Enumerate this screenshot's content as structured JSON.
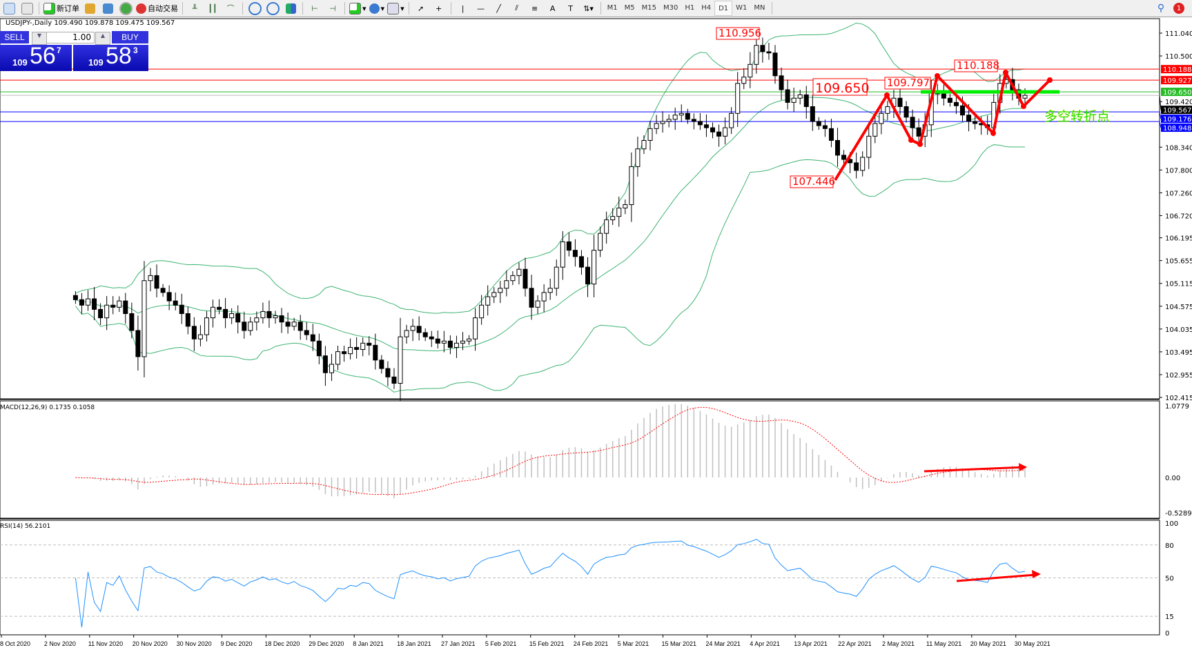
{
  "toolbar": {
    "new_order": "新订单",
    "auto_trading": "自动交易",
    "timeframes": [
      "M1",
      "M5",
      "M15",
      "M30",
      "H1",
      "H4",
      "D1",
      "W1",
      "MN"
    ],
    "active_timeframe": "D1",
    "notification_count": "1"
  },
  "chart_title": "USDJPY-,Daily  109.490 109.878 109.475 109.567",
  "one_click": {
    "sell_label": "SELL",
    "buy_label": "BUY",
    "lot": "1.00",
    "sell_big": "109",
    "sell_digits": "56",
    "sell_frac": "7",
    "buy_big": "109",
    "buy_digits": "58",
    "buy_frac": "3"
  },
  "macd_label": "MACD(12,26,9) 0.1735 0.1058",
  "rsi_label": "RSI(14) 56.2101",
  "annotation_text": "多空转折点",
  "price_labels": [
    "110.956",
    "109.650",
    "109.797",
    "110.188",
    "107.446"
  ],
  "colors": {
    "bull_body": "#ffffff",
    "bear_body": "#000000",
    "bands": "#3cb371",
    "macd_hist": "#c0c0c0",
    "macd_signal": "#ff0000",
    "rsi": "#1e90ff",
    "drawings": "#ff0000",
    "pivot": "#00ee00"
  },
  "chart_data": {
    "type": "candlestick",
    "symbol": "USDJPY-",
    "timeframe": "Daily",
    "price_axis": {
      "ylim": [
        102.415,
        111.04
      ],
      "ticks": [
        "111.040",
        "110.500",
        "109.420",
        "108.340",
        "107.800",
        "107.260",
        "106.720",
        "106.195",
        "105.655",
        "105.115",
        "104.575",
        "104.035",
        "103.495",
        "102.955",
        "102.415"
      ]
    },
    "x_ticks": [
      "8 Oct 2020",
      "2 Nov 2020",
      "11 Nov 2020",
      "20 Nov 2020",
      "30 Nov 2020",
      "9 Dec 2020",
      "18 Dec 2020",
      "29 Dec 2020",
      "8 Jan 2021",
      "18 Jan 2021",
      "27 Jan 2021",
      "5 Feb 2021",
      "15 Feb 2021",
      "24 Feb 2021",
      "5 Mar 2021",
      "15 Mar 2021",
      "24 Mar 2021",
      "4 Apr 2021",
      "13 Apr 2021",
      "22 Apr 2021",
      "2 May 2021",
      "11 May 2021",
      "20 May 2021",
      "30 May 2021"
    ],
    "closes": [
      104.73,
      104.6,
      104.75,
      104.5,
      104.3,
      104.6,
      104.55,
      104.7,
      104.4,
      104.0,
      103.38,
      105.18,
      105.3,
      105.0,
      104.9,
      104.7,
      104.6,
      104.4,
      104.1,
      103.8,
      103.9,
      104.3,
      104.55,
      104.5,
      104.3,
      104.4,
      104.2,
      104.0,
      104.2,
      104.3,
      104.45,
      104.3,
      104.35,
      104.2,
      104.1,
      104.2,
      104.0,
      103.9,
      103.75,
      103.4,
      103.0,
      103.2,
      103.5,
      103.45,
      103.6,
      103.55,
      103.7,
      103.65,
      103.3,
      103.1,
      102.9,
      102.75,
      103.85,
      104.0,
      104.1,
      103.95,
      103.85,
      103.8,
      103.7,
      103.75,
      103.6,
      103.7,
      103.75,
      103.8,
      104.3,
      104.6,
      104.8,
      104.9,
      105.0,
      105.18,
      105.3,
      105.45,
      105.0,
      104.55,
      104.7,
      104.9,
      105.0,
      105.5,
      106.1,
      105.9,
      105.75,
      105.5,
      105.1,
      105.9,
      106.3,
      106.62,
      106.7,
      106.9,
      106.98,
      107.88,
      108.3,
      108.5,
      108.78,
      108.9,
      108.95,
      109.0,
      109.1,
      109.14,
      109.0,
      108.95,
      108.87,
      108.8,
      108.7,
      108.6,
      108.8,
      109.14,
      109.85,
      110.0,
      110.3,
      110.75,
      110.6,
      110.57,
      110.03,
      109.7,
      109.4,
      109.5,
      109.58,
      109.3,
      108.95,
      108.85,
      108.78,
      108.5,
      108.15,
      108.05,
      107.97,
      107.79,
      108.1,
      108.6,
      108.9,
      109.14,
      109.3,
      109.5,
      109.3,
      109.05,
      108.8,
      108.6,
      108.87,
      109.67,
      109.6,
      109.5,
      109.4,
      109.32,
      109.1,
      108.95,
      108.9,
      108.87,
      108.8,
      109.4,
      109.85,
      109.94,
      109.7,
      109.5,
      109.567
    ],
    "horizontal_lines": [
      {
        "price": "110.188",
        "color": "#ff0000"
      },
      {
        "price": "109.927",
        "color": "#ff0000"
      },
      {
        "price": "109.650",
        "color": "#22bb22"
      },
      {
        "price": "109.567",
        "color": "#000000"
      },
      {
        "price": "109.176",
        "color": "#0000ff"
      },
      {
        "price": "108.948",
        "color": "#0000ff"
      }
    ],
    "indicators": [
      {
        "name": "Bollinger Bands",
        "period": 20
      },
      {
        "name": "MACD",
        "params": "12,26,9",
        "ylim": [
          -0.5289,
          1.0779
        ],
        "ticks": [
          "1.0779",
          "0.00",
          "-0.5289"
        ]
      },
      {
        "name": "RSI",
        "period": 14,
        "ylim": [
          0,
          100
        ],
        "ticks": [
          "100",
          "80",
          "50",
          "15",
          "0"
        ],
        "levels": [
          80,
          50,
          15
        ]
      }
    ]
  }
}
